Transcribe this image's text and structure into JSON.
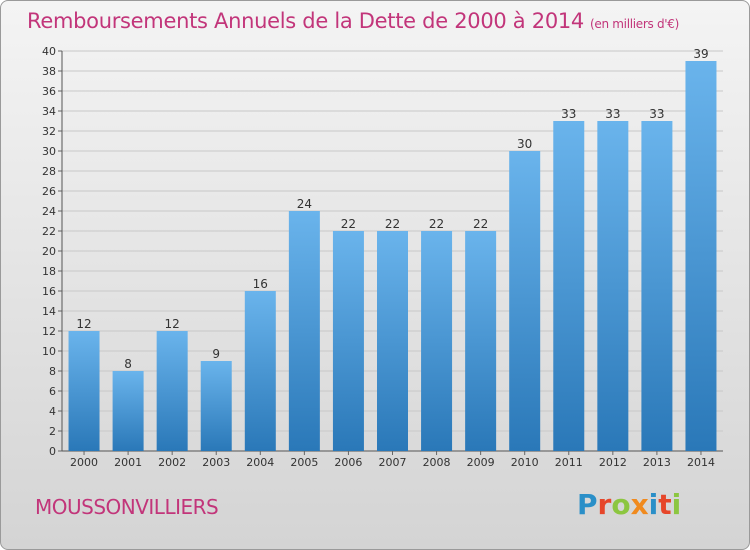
{
  "title": "Remboursements Annuels de la Dette de 2000 à 2014",
  "subtitle": "(en milliers d'€)",
  "commune": "MOUSSONVILLIERS",
  "brand": {
    "name": "Proxiti",
    "letter_colors": [
      "#2a8fc8",
      "#e6462a",
      "#8cc640",
      "#f08a1e",
      "#2a8fc8",
      "#e6462a",
      "#8cc640"
    ]
  },
  "colors": {
    "title": "#c2357a",
    "bar_light": "#6ab4ec",
    "bar_dark": "#2a78b8",
    "grid": "#c8c8c8",
    "axis_text": "#333333"
  },
  "chart_data": {
    "type": "bar",
    "title": "Remboursements Annuels de la Dette de 2000 à 2014",
    "subtitle": "(en milliers d'€)",
    "categories": [
      "2000",
      "2001",
      "2002",
      "2003",
      "2004",
      "2005",
      "2006",
      "2007",
      "2008",
      "2009",
      "2010",
      "2011",
      "2012",
      "2013",
      "2014"
    ],
    "values": [
      12,
      8,
      12,
      9,
      16,
      24,
      22,
      22,
      22,
      22,
      30,
      33,
      33,
      33,
      39
    ],
    "ylim": [
      0,
      40
    ],
    "yticks": [
      0,
      2,
      4,
      6,
      8,
      10,
      12,
      14,
      16,
      18,
      20,
      22,
      24,
      26,
      28,
      30,
      32,
      34,
      36,
      38,
      40
    ],
    "grid": true,
    "legend": "none"
  }
}
